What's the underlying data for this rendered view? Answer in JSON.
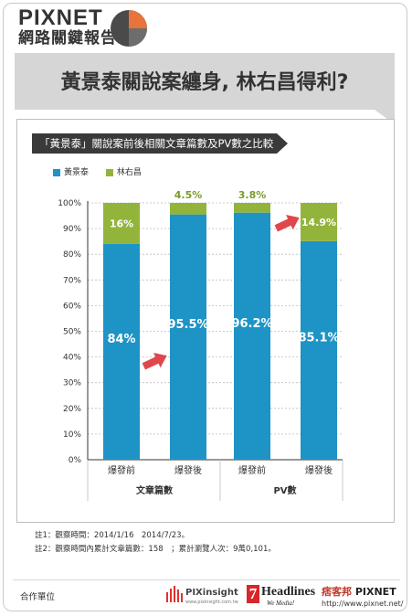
{
  "brand": {
    "name": "PIXNET",
    "subtitle": "網路關鍵報告"
  },
  "headline": "黃景泰關說案纏身, 林右昌得利?",
  "chart_data": {
    "type": "bar",
    "stacked": true,
    "title": "「黃景泰」關說案前後相關文章篇數及PV數之比較",
    "categories": [
      "爆發前",
      "爆發後",
      "爆發前",
      "爆發後"
    ],
    "groups": [
      {
        "label": "文章篇數",
        "categories": [
          0,
          1
        ]
      },
      {
        "label": "PV數",
        "categories": [
          2,
          3
        ]
      }
    ],
    "series": [
      {
        "name": "黃景泰",
        "color": "#1e93c6",
        "values": [
          84,
          95.5,
          96.2,
          85.1
        ],
        "labels": [
          "84%",
          "95.5%",
          "96.2%",
          "85.1%"
        ]
      },
      {
        "name": "林右昌",
        "color": "#93b43b",
        "values": [
          16,
          4.5,
          3.8,
          14.9
        ],
        "labels": [
          "16%",
          "4.5%",
          "3.8%",
          "14.9%"
        ]
      }
    ],
    "yticks": [
      "0%",
      "10%",
      "20%",
      "30%",
      "40%",
      "50%",
      "60%",
      "70%",
      "80%",
      "90%",
      "100%"
    ],
    "ylim": [
      0,
      100
    ],
    "legend": "top-left",
    "grid": true
  },
  "notes": [
    "註1：觀察時間：2014/1/16　2014/7/23。",
    "註2：觀察時間內累計文章篇數：158　；累計瀏覽人次：9萬0,101。"
  ],
  "footer": {
    "partner_label": "合作單位",
    "pixinsight": {
      "name": "PIXinsight",
      "url": "www.pixinsight.com.tw"
    },
    "headlines": {
      "num": "7",
      "name": "Headlines",
      "tagline": "We Media!"
    },
    "pixnet": {
      "cn": "痞客邦",
      "name": "PIXNET",
      "url": "http://www.pixnet.net/"
    }
  }
}
